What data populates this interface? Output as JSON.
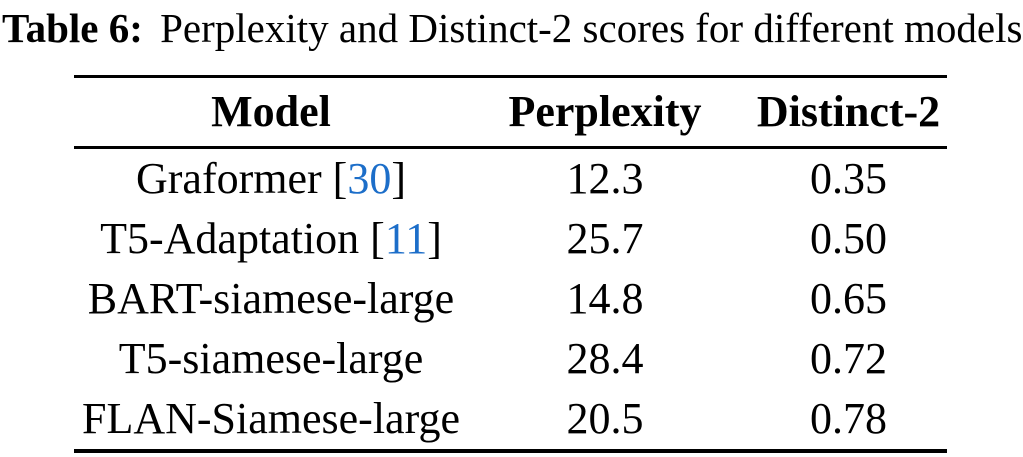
{
  "caption": {
    "label": "Table 6:",
    "text": "Perplexity and Distinct-2 scores for different models"
  },
  "colors": {
    "text": "#000000",
    "citation": "#1c6ec9",
    "rule": "#000000"
  },
  "table": {
    "columns": [
      "Model",
      "Perplexity",
      "Distinct-2"
    ],
    "rows": [
      {
        "model": "Graformer",
        "cite_open": " [",
        "citation": "30",
        "cite_close": "]",
        "perplexity": "12.3",
        "distinct2": "0.35"
      },
      {
        "model": "T5-Adaptation",
        "cite_open": " [",
        "citation": "11",
        "cite_close": "]",
        "perplexity": "25.7",
        "distinct2": "0.50"
      },
      {
        "model": "BART-siamese-large",
        "perplexity": "14.8",
        "distinct2": "0.65"
      },
      {
        "model": "T5-siamese-large",
        "perplexity": "28.4",
        "distinct2": "0.72"
      },
      {
        "model": "FLAN-Siamese-large",
        "perplexity": "20.5",
        "distinct2": "0.78"
      }
    ]
  }
}
